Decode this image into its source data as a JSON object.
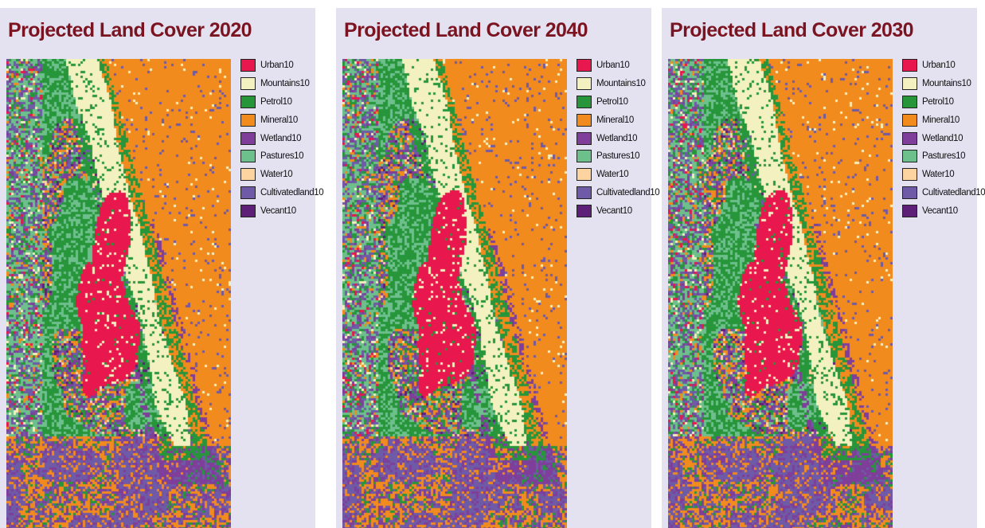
{
  "legend_items": [
    {
      "label": "Urban10",
      "color": "#e8174d"
    },
    {
      "label": "Mountains10",
      "color": "#f3f1bf"
    },
    {
      "label": "Petrol10",
      "color": "#27963a"
    },
    {
      "label": "Mineral10",
      "color": "#f28b1e"
    },
    {
      "label": "Wetland10",
      "color": "#7e3e99"
    },
    {
      "label": "Pastures10",
      "color": "#6dbf8c"
    },
    {
      "label": "Water10",
      "color": "#fdd3a0"
    },
    {
      "label": "Cultivatedland10",
      "color": "#6e5aa6"
    },
    {
      "label": "Vecant10",
      "color": "#5e1f78"
    }
  ],
  "panels": [
    {
      "title": "Projected Land Cover 2020"
    },
    {
      "title": "Projected Land Cover 2040"
    },
    {
      "title": "Projected Land Cover 2030"
    }
  ]
}
